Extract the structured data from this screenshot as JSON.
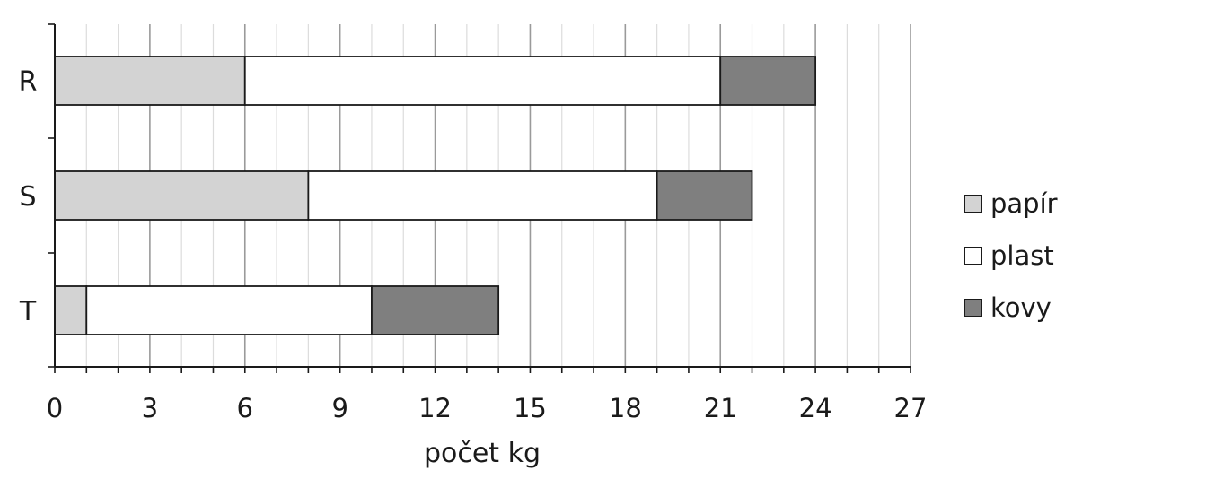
{
  "chart_data": {
    "type": "bar",
    "orientation": "horizontal",
    "stacked": true,
    "categories": [
      "R",
      "S",
      "T"
    ],
    "series": [
      {
        "name": "papír",
        "values": [
          6,
          8,
          1
        ],
        "color": "#d3d3d3"
      },
      {
        "name": "plast",
        "values": [
          15,
          11,
          9
        ],
        "color": "#ffffff"
      },
      {
        "name": "kovy",
        "values": [
          3,
          3,
          4
        ],
        "color": "#7f7f7f"
      }
    ],
    "xlabel": "počet kg",
    "ylabel": "",
    "xlim": [
      0,
      27
    ],
    "xticks": [
      0,
      3,
      6,
      9,
      12,
      15,
      18,
      21,
      24,
      27
    ],
    "grid": true,
    "legend": "right"
  }
}
